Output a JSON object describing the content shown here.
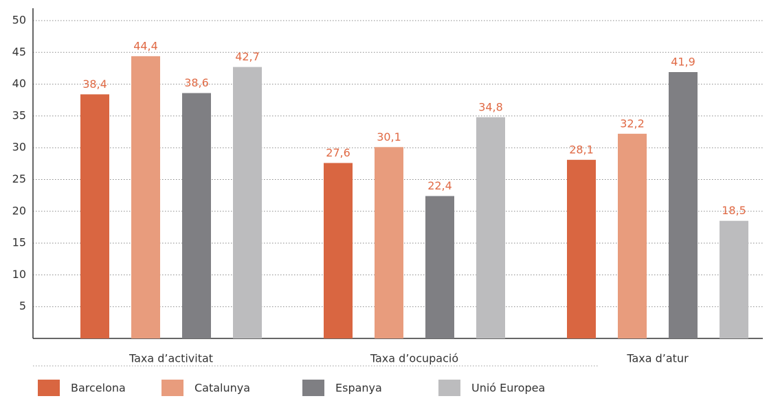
{
  "chart_data": {
    "type": "bar",
    "categories": [
      "Taxa d’activitat",
      "Taxa d’ocupació",
      "Taxa d’atur"
    ],
    "series": [
      {
        "name": "Barcelona",
        "color": "#d96641",
        "values": [
          38.4,
          27.6,
          28.1
        ],
        "value_labels": [
          "38,4",
          "27,6",
          "28,1"
        ]
      },
      {
        "name": "Catalunya",
        "color": "#e89c7d",
        "values": [
          44.4,
          30.1,
          32.2
        ],
        "value_labels": [
          "44,4",
          "30,1",
          "32,2"
        ]
      },
      {
        "name": "Espanya",
        "color": "#7f7f83",
        "values": [
          38.6,
          22.4,
          41.9
        ],
        "value_labels": [
          "38,6",
          "22,4",
          "41,9"
        ]
      },
      {
        "name": "Unió Europea",
        "color": "#bcbcbe",
        "values": [
          42.7,
          34.8,
          18.5
        ],
        "value_labels": [
          "42,7",
          "34,8",
          "18,5"
        ]
      }
    ],
    "ylim": [
      0,
      50
    ],
    "yticks": [
      5,
      10,
      15,
      20,
      25,
      30,
      35,
      40,
      45,
      50
    ],
    "grid": true
  }
}
